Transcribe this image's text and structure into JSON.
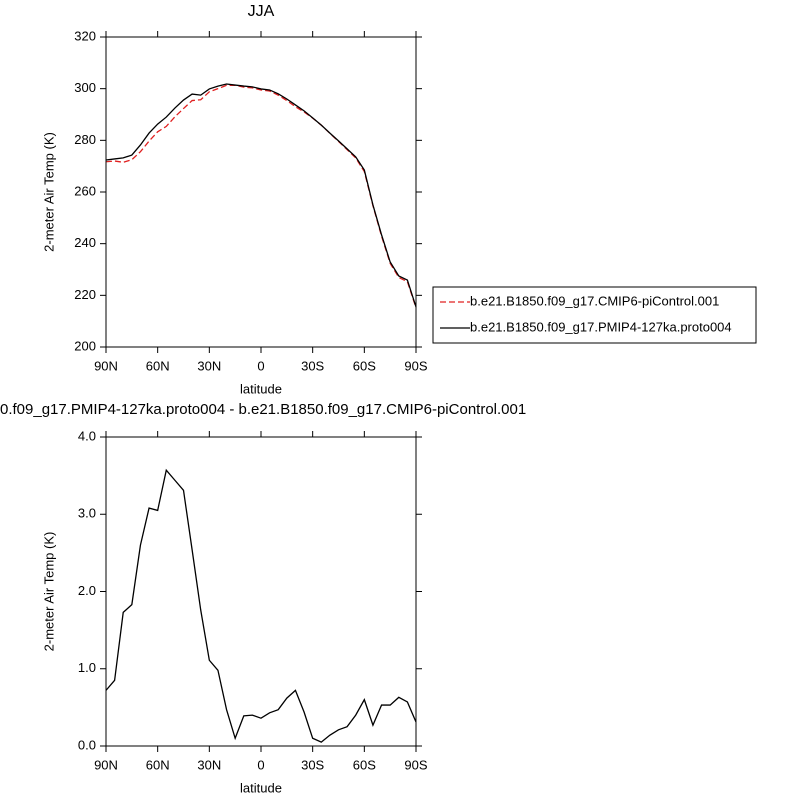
{
  "chart_data": [
    {
      "type": "line",
      "title": "JJA",
      "xlabel": "latitude",
      "ylabel": "2-meter Air Temp (K)",
      "x": [
        90,
        85,
        80,
        75,
        70,
        65,
        60,
        55,
        50,
        45,
        40,
        35,
        30,
        25,
        20,
        15,
        10,
        5,
        0,
        -5,
        -10,
        -15,
        -20,
        -25,
        -30,
        -35,
        -40,
        -45,
        -50,
        -55,
        -60,
        -65,
        -70,
        -75,
        -80,
        -85,
        -90
      ],
      "series": [
        {
          "name": "b.e21.B1850.f09_g17.CMIP6-piControl.001",
          "color": "#e02020",
          "dash": true,
          "values": [
            271.7,
            272.0,
            271.5,
            272.5,
            275.6,
            279.7,
            283.3,
            285.4,
            289.1,
            292.3,
            295.4,
            295.7,
            298.8,
            300.0,
            301.3,
            301.3,
            300.6,
            300.3,
            299.5,
            299.1,
            297.5,
            295.4,
            293.0,
            291.0,
            288.6,
            285.9,
            282.7,
            279.6,
            276.4,
            273.2,
            267.9,
            254.7,
            242.9,
            232.4,
            226.9,
            225.3,
            215.2
          ]
        },
        {
          "name": "b.e21.B1850.f09_g17.PMIP4-127ka.proto004",
          "color": "#000000",
          "dash": false,
          "values": [
            272.4,
            272.8,
            273.2,
            274.3,
            278.2,
            282.8,
            286.3,
            289.0,
            292.5,
            295.6,
            297.9,
            297.5,
            299.9,
            301.0,
            301.8,
            301.4,
            301.0,
            300.7,
            299.9,
            299.5,
            298.0,
            296.0,
            293.7,
            291.4,
            288.7,
            285.9,
            282.8,
            279.8,
            276.7,
            273.6,
            268.5,
            255.0,
            243.4,
            232.9,
            227.5,
            225.9,
            215.5
          ]
        }
      ],
      "xlim": [
        90,
        -90
      ],
      "xticks": [
        {
          "value": 90,
          "label": "90N"
        },
        {
          "value": 60,
          "label": "60N"
        },
        {
          "value": 30,
          "label": "30N"
        },
        0,
        {
          "value": -30,
          "label": "30S"
        },
        {
          "value": -60,
          "label": "60S"
        },
        {
          "value": -90,
          "label": "90S"
        }
      ],
      "ylim": [
        200,
        320
      ],
      "yticks": [
        200,
        220,
        240,
        260,
        280,
        300,
        320
      ],
      "legend": "right"
    },
    {
      "type": "line",
      "title": "0.f09_g17.PMIP4-127ka.proto004 - b.e21.B1850.f09_g17.CMIP6-piControl.001",
      "xlabel": "latitude",
      "ylabel": "2-meter Air Temp (K)",
      "x": [
        90,
        85,
        80,
        75,
        70,
        65,
        60,
        55,
        50,
        45,
        40,
        35,
        30,
        25,
        20,
        15,
        10,
        5,
        0,
        -5,
        -10,
        -15,
        -20,
        -25,
        -30,
        -35,
        -40,
        -45,
        -50,
        -55,
        -60,
        -65,
        -70,
        -75,
        -80,
        -85,
        -90
      ],
      "series": [
        {
          "color": "#000000",
          "dash": false,
          "values": [
            0.72,
            0.85,
            1.73,
            1.83,
            2.6,
            3.08,
            3.05,
            3.57,
            3.44,
            3.31,
            2.54,
            1.76,
            1.11,
            0.98,
            0.47,
            0.1,
            0.39,
            0.4,
            0.36,
            0.43,
            0.47,
            0.62,
            0.72,
            0.44,
            0.1,
            0.05,
            0.14,
            0.21,
            0.25,
            0.4,
            0.6,
            0.27,
            0.53,
            0.53,
            0.63,
            0.57,
            0.31
          ]
        }
      ],
      "xlim": [
        90,
        -90
      ],
      "xticks": [
        {
          "value": 90,
          "label": "90N"
        },
        {
          "value": 60,
          "label": "60N"
        },
        {
          "value": 30,
          "label": "30N"
        },
        0,
        {
          "value": -30,
          "label": "30S"
        },
        {
          "value": -60,
          "label": "60S"
        },
        {
          "value": -90,
          "label": "90S"
        }
      ],
      "ylim": [
        0,
        4
      ],
      "yticks": [
        {
          "value": 0,
          "label": "0.0"
        },
        {
          "value": 1,
          "label": "1.0"
        },
        {
          "value": 2,
          "label": "2.0"
        },
        {
          "value": 3,
          "label": "3.0"
        },
        {
          "value": 4,
          "label": "4.0"
        }
      ]
    }
  ]
}
